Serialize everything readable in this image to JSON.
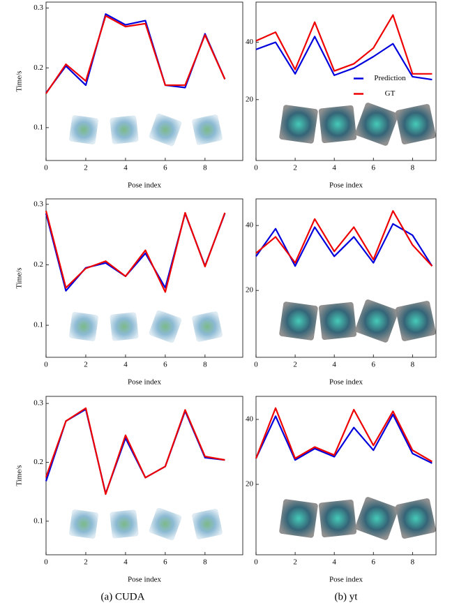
{
  "chart_data": [
    {
      "type": "line",
      "ylabel": "Time/s",
      "xlabel": "Pose index",
      "x": [
        0,
        1,
        2,
        3,
        4,
        5,
        6,
        7,
        8,
        9
      ],
      "xlim": [
        0,
        9.9
      ],
      "xticks": [
        0,
        2,
        4,
        6,
        8
      ],
      "ylim": [
        0.045,
        0.31
      ],
      "yticks": [
        0.1,
        0.2,
        0.3
      ],
      "series": [
        {
          "name": "Prediction",
          "color": "#0000dd",
          "values": [
            0.158,
            0.203,
            0.171,
            0.29,
            0.272,
            0.279,
            0.171,
            0.167,
            0.257,
            0.181
          ]
        },
        {
          "name": "GT",
          "color": "#ee0000",
          "values": [
            0.157,
            0.206,
            0.178,
            0.287,
            0.269,
            0.274,
            0.171,
            0.171,
            0.255,
            0.181
          ]
        }
      ]
    },
    {
      "type": "line",
      "xlabel": "Pose index",
      "x": [
        0,
        1,
        2,
        3,
        4,
        5,
        6,
        7,
        8,
        9
      ],
      "legend": "center right",
      "xlim": [
        0,
        9.2
      ],
      "xticks": [
        0,
        2,
        4,
        6,
        8
      ],
      "ylim": [
        -1.2,
        54
      ],
      "yticks": [
        20,
        40
      ],
      "series": [
        {
          "name": "Prediction",
          "color": "#0000dd",
          "values": [
            37.5,
            40,
            29,
            42,
            28.5,
            31,
            35,
            39.5,
            28,
            27
          ]
        },
        {
          "name": "GT",
          "color": "#ee0000",
          "values": [
            40.5,
            43.5,
            30.5,
            47,
            30,
            32.5,
            38,
            49.5,
            29,
            29
          ]
        }
      ]
    },
    {
      "type": "line",
      "ylabel": "Time/s",
      "xlabel": "Pose index",
      "x": [
        0,
        1,
        2,
        3,
        4,
        5,
        6,
        7,
        8,
        9
      ],
      "xlim": [
        0,
        9.9
      ],
      "xticks": [
        0,
        2,
        4,
        6,
        8
      ],
      "ylim": [
        0.047,
        0.309
      ],
      "yticks": [
        0.1,
        0.2,
        0.3
      ],
      "series": [
        {
          "name": "Prediction",
          "color": "#0000dd",
          "values": [
            0.285,
            0.157,
            0.195,
            0.203,
            0.181,
            0.219,
            0.162,
            0.285,
            0.198,
            0.285
          ]
        },
        {
          "name": "GT",
          "color": "#ee0000",
          "values": [
            0.289,
            0.162,
            0.194,
            0.206,
            0.181,
            0.224,
            0.155,
            0.286,
            0.197,
            0.286
          ]
        }
      ]
    },
    {
      "type": "line",
      "xlabel": "Pose index",
      "x": [
        0,
        1,
        2,
        3,
        4,
        5,
        6,
        7,
        8,
        9
      ],
      "xlim": [
        0,
        9.2
      ],
      "xticks": [
        0,
        2,
        4,
        6,
        8
      ],
      "ylim": [
        -0.6,
        48.2
      ],
      "yticks": [
        20,
        40
      ],
      "series": [
        {
          "name": "Prediction",
          "color": "#0000dd",
          "values": [
            30.5,
            39,
            27.5,
            39.5,
            30.5,
            36.5,
            28.5,
            40.5,
            37,
            27.5
          ]
        },
        {
          "name": "GT",
          "color": "#ee0000",
          "values": [
            31.5,
            36.5,
            28.5,
            42,
            32,
            39.5,
            29.5,
            44.5,
            34,
            27.5
          ]
        }
      ]
    },
    {
      "type": "line",
      "ylabel": "Time/s",
      "xlabel": "Pose index",
      "x": [
        0,
        1,
        2,
        3,
        4,
        5,
        6,
        7,
        8,
        9
      ],
      "xlim": [
        0,
        9.9
      ],
      "xticks": [
        0,
        2,
        4,
        6,
        8
      ],
      "ylim": [
        0.043,
        0.312
      ],
      "yticks": [
        0.1,
        0.2,
        0.3
      ],
      "series": [
        {
          "name": "Prediction",
          "color": "#0000dd",
          "values": [
            0.168,
            0.27,
            0.29,
            0.147,
            0.241,
            0.174,
            0.193,
            0.287,
            0.208,
            0.204
          ]
        },
        {
          "name": "GT",
          "color": "#ee0000",
          "values": [
            0.175,
            0.27,
            0.292,
            0.146,
            0.246,
            0.174,
            0.193,
            0.289,
            0.21,
            0.204
          ]
        }
      ]
    },
    {
      "type": "line",
      "xlabel": "Pose index",
      "x": [
        0,
        1,
        2,
        3,
        4,
        5,
        6,
        7,
        8,
        9
      ],
      "xlim": [
        0,
        9.2
      ],
      "xticks": [
        0,
        2,
        4,
        6,
        8
      ],
      "ylim": [
        -1.7,
        47.1
      ],
      "yticks": [
        20,
        40
      ],
      "series": [
        {
          "name": "Prediction",
          "color": "#0000dd",
          "values": [
            28,
            41,
            27.5,
            31,
            28.5,
            37.5,
            30.5,
            41.5,
            29.5,
            26.5
          ]
        },
        {
          "name": "GT",
          "color": "#ee0000",
          "values": [
            28,
            43.5,
            28,
            31.5,
            29,
            43,
            32,
            42.5,
            30.5,
            27
          ]
        }
      ]
    }
  ],
  "captions": [
    "(a) CUDA",
    "(b) yt"
  ]
}
